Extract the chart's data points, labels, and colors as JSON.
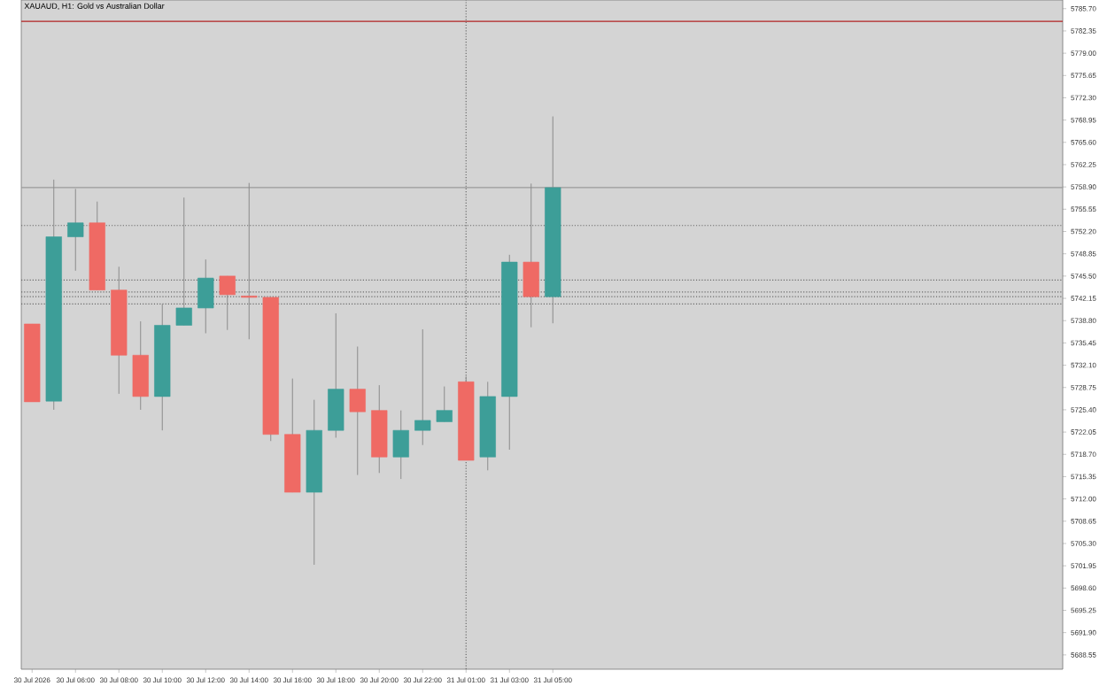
{
  "chart_data": {
    "type": "candlestick",
    "title": "XAUAUD, H1:  Gold vs Australian Dollar",
    "categories": [
      "30 Jul 2026",
      null,
      "30 Jul 06:00",
      null,
      "30 Jul 08:00",
      null,
      "30 Jul 10:00",
      null,
      "30 Jul 12:00",
      null,
      "30 Jul 14:00",
      null,
      "30 Jul 16:00",
      null,
      "30 Jul 18:00",
      null,
      "30 Jul 20:00",
      null,
      "30 Jul 22:00",
      null,
      "31 Jul 01:00",
      null,
      "31 Jul 03:00",
      null,
      "31 Jul 05:00",
      null,
      null,
      null,
      null,
      null,
      null,
      null,
      null,
      null,
      null,
      null,
      null,
      null,
      null,
      null,
      null,
      null,
      null,
      null,
      null,
      null,
      null,
      null
    ],
    "ohlc": [
      [
        5738.3,
        5738.3,
        5726.6,
        5726.6
      ],
      [
        5726.7,
        5760.0,
        5725.4,
        5751.4
      ],
      [
        5751.4,
        5758.6,
        5746.3,
        5753.5
      ],
      [
        5753.5,
        5756.7,
        5743.4,
        5743.4
      ],
      [
        5743.4,
        5746.9,
        5727.8,
        5733.6
      ],
      [
        5733.6,
        5738.7,
        5725.4,
        5727.4
      ],
      [
        5727.4,
        5741.3,
        5722.3,
        5738.1
      ],
      [
        5738.1,
        5757.3,
        5738.1,
        5740.7
      ],
      [
        5740.7,
        5748.0,
        5736.9,
        5745.2
      ],
      [
        5745.5,
        5745.5,
        5737.4,
        5742.7
      ],
      [
        5742.5,
        5759.5,
        5736.0,
        5742.3
      ],
      [
        5742.3,
        5742.3,
        5720.7,
        5721.7
      ],
      [
        5721.7,
        5730.1,
        5713.0,
        5713.0
      ],
      [
        5713.0,
        5726.9,
        5702.1,
        5722.3
      ],
      [
        5722.3,
        5739.9,
        5721.2,
        5728.5
      ],
      [
        5728.5,
        5734.9,
        5715.6,
        5725.1
      ],
      [
        5725.3,
        5729.1,
        5715.9,
        5718.3
      ],
      [
        5718.3,
        5725.3,
        5715.0,
        5722.3
      ],
      [
        5722.3,
        5737.5,
        5720.1,
        5723.8
      ],
      [
        5723.6,
        5728.9,
        5723.6,
        5725.3
      ],
      [
        5729.6,
        5730.4,
        5717.8,
        5717.8
      ],
      [
        5718.3,
        5729.6,
        5716.3,
        5727.4
      ],
      [
        5727.4,
        5748.7,
        5719.4,
        5747.6
      ],
      [
        5747.6,
        5759.4,
        5737.8,
        5742.4
      ],
      [
        5742.4,
        5769.5,
        5738.4,
        5758.8
      ],
      null,
      null,
      null,
      null,
      null,
      null,
      null,
      null,
      null,
      null,
      null,
      null,
      null,
      null,
      null,
      null,
      null,
      null,
      null,
      null,
      null,
      null,
      null
    ],
    "colors": [
      "#ef6a64",
      "#3d9e98",
      "#3d9e98",
      "#ef6a64",
      "#ef6a64",
      "#ef6a64",
      "#3d9e98",
      "#3d9e98",
      "#3d9e98",
      "#ef6a64",
      "#ef6a64",
      "#ef6a64",
      "#ef6a64",
      "#3d9e98",
      "#3d9e98",
      "#ef6a64",
      "#ef6a64",
      "#3d9e98",
      "#3d9e98",
      "#3d9e98",
      "#ef6a64",
      "#3d9e98",
      "#3d9e98",
      "#ef6a64",
      "#3d9e98",
      null,
      null,
      null,
      null,
      null,
      null,
      null,
      null,
      null,
      null,
      null,
      null,
      null,
      null,
      null,
      null,
      null,
      null,
      null,
      null,
      null,
      null,
      null
    ],
    "ylim": [
      5686.4,
      5787.0
    ],
    "yticks": [
      {
        "value": 5688.55,
        "label": "5688.55"
      },
      {
        "value": 5691.9,
        "label": "5691.90"
      },
      {
        "value": 5695.25,
        "label": "5695.25"
      },
      {
        "value": 5698.6,
        "label": "5698.60"
      },
      {
        "value": 5701.95,
        "label": "5701.95"
      },
      {
        "value": 5705.3,
        "label": "5705.30"
      },
      {
        "value": 5708.65,
        "label": "5708.65"
      },
      {
        "value": 5712.0,
        "label": "5712.00"
      },
      {
        "value": 5715.35,
        "label": "5715.35"
      },
      {
        "value": 5718.7,
        "label": "5718.70"
      },
      {
        "value": 5722.05,
        "label": "5722.05"
      },
      {
        "value": 5725.4,
        "label": "5725.40"
      },
      {
        "value": 5728.75,
        "label": "5728.75"
      },
      {
        "value": 5732.1,
        "label": "5732.10"
      },
      {
        "value": 5735.45,
        "label": "5735.45"
      },
      {
        "value": 5738.8,
        "label": "5738.80"
      },
      {
        "value": 5742.15,
        "label": "5742.15"
      },
      {
        "value": 5745.5,
        "label": "5745.50"
      },
      {
        "value": 5748.85,
        "label": "5748.85"
      },
      {
        "value": 5752.2,
        "label": "5752.20"
      },
      {
        "value": 5755.55,
        "label": "5755.55"
      },
      {
        "value": 5758.9,
        "label": "5758.90"
      },
      {
        "value": 5762.25,
        "label": "5762.25"
      },
      {
        "value": 5765.6,
        "label": "5765.60"
      },
      {
        "value": 5768.95,
        "label": "5768.95"
      },
      {
        "value": 5772.3,
        "label": "5772.30"
      },
      {
        "value": 5775.65,
        "label": "5775.65"
      },
      {
        "value": 5779.0,
        "label": "5779.00"
      },
      {
        "value": 5782.35,
        "label": "5782.35"
      },
      {
        "value": 5785.7,
        "label": "5785.70"
      }
    ],
    "ref_lines": [
      {
        "axis": "y",
        "value": 5783.8,
        "color": "#b22222",
        "line_style": "solid"
      },
      {
        "axis": "y",
        "value": 5758.8,
        "color": "#9a9a9a",
        "line_style": "solid"
      },
      {
        "axis": "y",
        "value": 5753.1,
        "color": "#6a6a6a",
        "line_style": "dotted"
      },
      {
        "axis": "y",
        "value": 5744.9,
        "color": "#6a6a6a",
        "line_style": "dotted"
      },
      {
        "axis": "y",
        "value": 5743.1,
        "color": "#6a6a6a",
        "line_style": "dotted"
      },
      {
        "axis": "y",
        "value": 5742.4,
        "color": "#6a6a6a",
        "line_style": "dotted"
      },
      {
        "axis": "y",
        "value": 5741.3,
        "color": "#6a6a6a",
        "line_style": "dotted"
      },
      {
        "axis": "x",
        "value": "31 Jul 01:00",
        "color": "#6a6a6a",
        "line_style": "dotted"
      }
    ],
    "grid": false
  }
}
